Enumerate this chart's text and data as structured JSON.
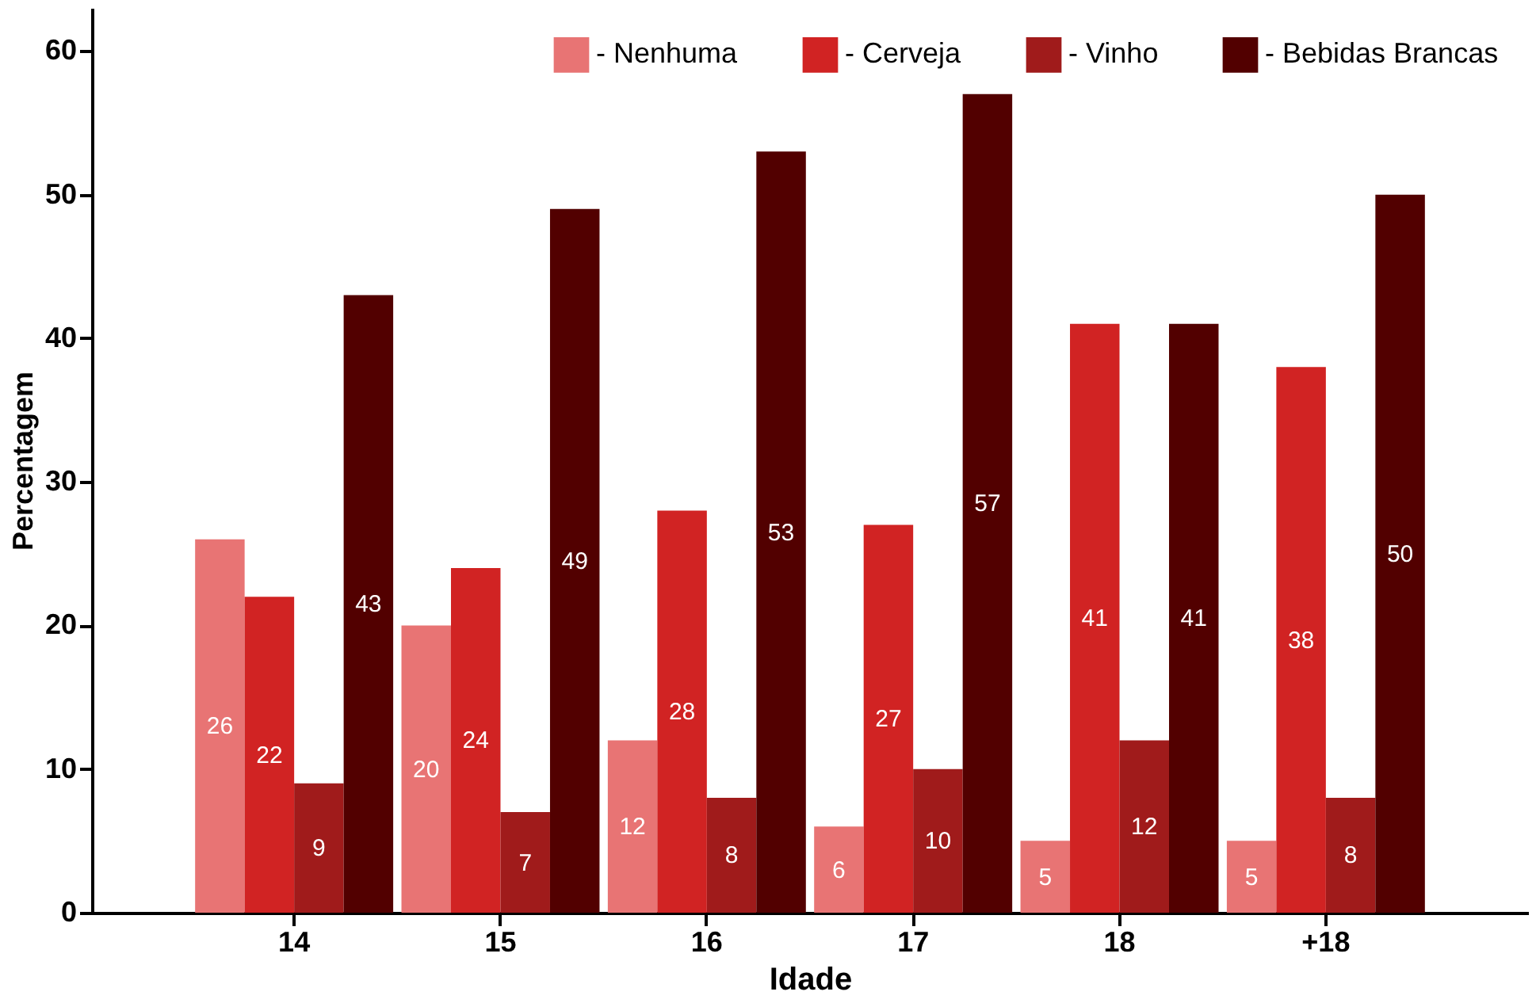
{
  "chart_data": {
    "type": "bar",
    "xlabel": "Idade",
    "ylabel": "Percentagem",
    "categories": [
      "14",
      "15",
      "16",
      "17",
      "18",
      "+18"
    ],
    "series": [
      {
        "name": "- Nenhuma",
        "color": "#e87474",
        "values": [
          26,
          20,
          12,
          6,
          5,
          5
        ]
      },
      {
        "name": "- Cerveja",
        "color": "#d12323",
        "values": [
          22,
          24,
          28,
          27,
          41,
          38
        ]
      },
      {
        "name": "- Vinho",
        "color": "#a01b1b",
        "values": [
          9,
          7,
          8,
          10,
          12,
          8
        ]
      },
      {
        "name": "- Bebidas Brancas",
        "color": "#520000",
        "values": [
          43,
          49,
          53,
          57,
          41,
          50
        ]
      }
    ],
    "ylim": [
      0,
      63
    ],
    "yticks": [
      0,
      10,
      20,
      30,
      40,
      50,
      60
    ],
    "grid": false,
    "legend": "top right",
    "data_labels": true
  }
}
